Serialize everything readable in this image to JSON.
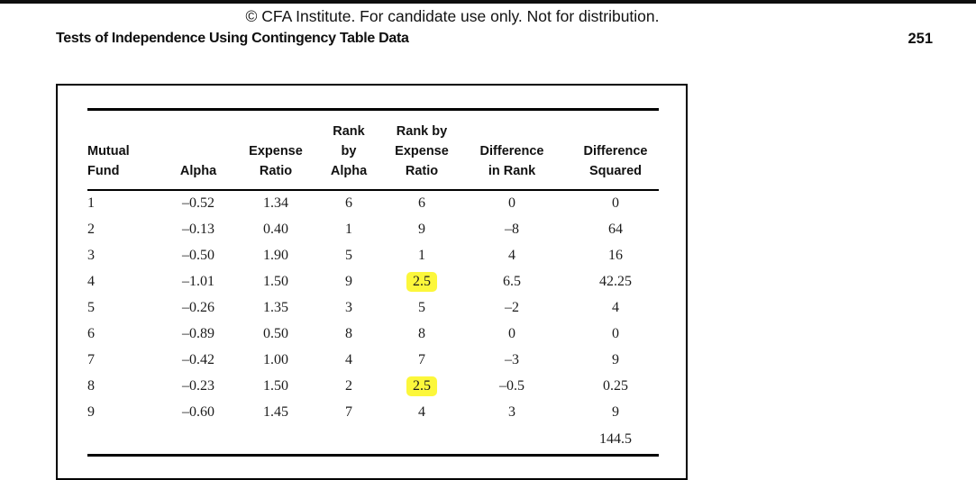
{
  "page": {
    "copyright": "© CFA Institute. For candidate use only. Not for distribution.",
    "section_title": "Tests of Independence Using Contingency Table Data",
    "page_number": "251"
  },
  "table": {
    "headers": [
      "Mutual\nFund",
      "Alpha",
      "Expense\nRatio",
      "Rank\nby\nAlpha",
      "Rank by\nExpense\nRatio",
      "Difference\nin Rank",
      "Difference\nSquared"
    ],
    "rows": [
      {
        "cells": [
          "1",
          "–0.52",
          "1.34",
          "6",
          "6",
          "0",
          "0"
        ]
      },
      {
        "cells": [
          "2",
          "–0.13",
          "0.40",
          "1",
          "9",
          "–8",
          "64"
        ]
      },
      {
        "cells": [
          "3",
          "–0.50",
          "1.90",
          "5",
          "1",
          "4",
          "16"
        ]
      },
      {
        "cells": [
          "4",
          "–1.01",
          "1.50",
          "9",
          "2.5",
          "6.5",
          "42.25"
        ],
        "highlight_col": 4
      },
      {
        "cells": [
          "5",
          "–0.26",
          "1.35",
          "3",
          "5",
          "–2",
          "4"
        ]
      },
      {
        "cells": [
          "6",
          "–0.89",
          "0.50",
          "8",
          "8",
          "0",
          "0"
        ]
      },
      {
        "cells": [
          "7",
          "–0.42",
          "1.00",
          "4",
          "7",
          "–3",
          "9"
        ]
      },
      {
        "cells": [
          "8",
          "–0.23",
          "1.50",
          "2",
          "2.5",
          "–0.5",
          "0.25"
        ],
        "highlight_col": 4
      },
      {
        "cells": [
          "9",
          "–0.60",
          "1.45",
          "7",
          "4",
          "3",
          "9"
        ]
      }
    ],
    "total": "144.5",
    "highlight_color": "#fcf73b"
  }
}
